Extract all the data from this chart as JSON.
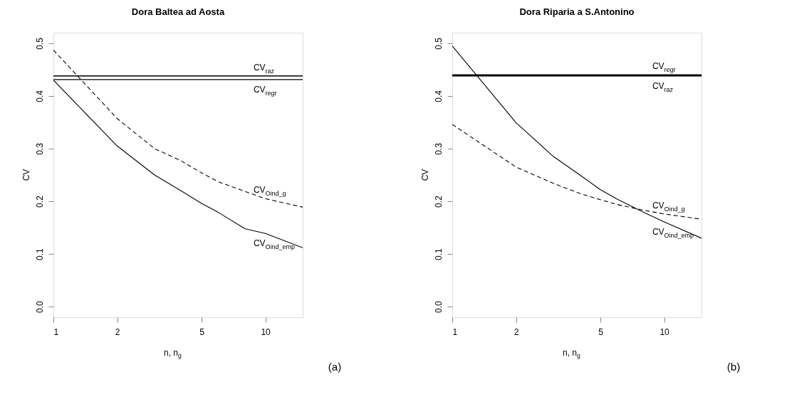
{
  "chart_data": [
    {
      "type": "line",
      "title": "Dora Baltea ad Aosta",
      "xlabel": "n, n$_{g}$",
      "ylabel": "CV",
      "log": "x",
      "x": [
        1,
        2,
        3,
        4,
        5,
        6,
        8,
        10,
        15
      ],
      "series": [
        {
          "name": "CV$_{Oind_emp}$",
          "color": "#000000",
          "line_style": "solid",
          "values": [
            0.43,
            0.305,
            0.25,
            0.22,
            0.196,
            0.179,
            0.148,
            0.139,
            0.112
          ]
        },
        {
          "name": "CV$_{Oind_g}$",
          "color": "#000000",
          "line_style": "dashed",
          "values": [
            0.487,
            0.357,
            0.3,
            0.277,
            0.254,
            0.237,
            0.219,
            0.205,
            0.189
          ]
        }
      ],
      "xlim": [
        1,
        15
      ],
      "ylim": [
        -0.02,
        0.52
      ],
      "xticks": [
        1,
        2,
        5,
        10
      ],
      "yticks": [
        {
          "value": 0,
          "label": "0.0"
        },
        {
          "value": 0.1,
          "label": "0.1"
        },
        {
          "value": 0.2,
          "label": "0.2"
        },
        {
          "value": 0.3,
          "label": "0.3"
        },
        {
          "value": 0.4,
          "label": "0.4"
        },
        {
          "value": 0.5,
          "label": "0.5"
        }
      ],
      "ref_lines": [
        {
          "axis": "y",
          "value": 0.438,
          "label": "CV$_{raz}$",
          "color": "#000000"
        },
        {
          "axis": "y",
          "value": 0.431,
          "label": "CV$_{regr}$",
          "color": "#000000"
        }
      ],
      "annotations": [
        "(a)"
      ]
    },
    {
      "type": "line",
      "title": "Dora Riparia a S.Antonino",
      "xlabel": "n, n$_{g}$",
      "ylabel": "CV",
      "log": "x",
      "x": [
        1,
        2,
        3,
        4,
        5,
        6,
        8,
        10,
        15
      ],
      "series": [
        {
          "name": "CV$_{Oind_emp}$",
          "color": "#000000",
          "line_style": "solid",
          "values": [
            0.495,
            0.349,
            0.285,
            0.25,
            0.222,
            0.204,
            0.179,
            0.161,
            0.13
          ]
        },
        {
          "name": "CV$_{Oind_g}$",
          "color": "#000000",
          "line_style": "dashed",
          "values": [
            0.346,
            0.265,
            0.234,
            0.215,
            0.203,
            0.194,
            0.183,
            0.176,
            0.166
          ]
        }
      ],
      "xlim": [
        1,
        15
      ],
      "ylim": [
        -0.02,
        0.52
      ],
      "xticks": [
        1,
        2,
        5,
        10
      ],
      "yticks": [
        {
          "value": 0,
          "label": "0.0"
        },
        {
          "value": 0.1,
          "label": "0.1"
        },
        {
          "value": 0.2,
          "label": "0.2"
        },
        {
          "value": 0.3,
          "label": "0.3"
        },
        {
          "value": 0.4,
          "label": "0.4"
        },
        {
          "value": 0.5,
          "label": "0.5"
        }
      ],
      "ref_lines": [
        {
          "axis": "y",
          "value": 0.44,
          "label": "CV$_{regr}$",
          "color": "#000000"
        },
        {
          "axis": "y",
          "value": 0.438,
          "label": "CV$_{raz}$",
          "color": "#000000"
        }
      ],
      "annotations": [
        "(b)"
      ]
    }
  ]
}
